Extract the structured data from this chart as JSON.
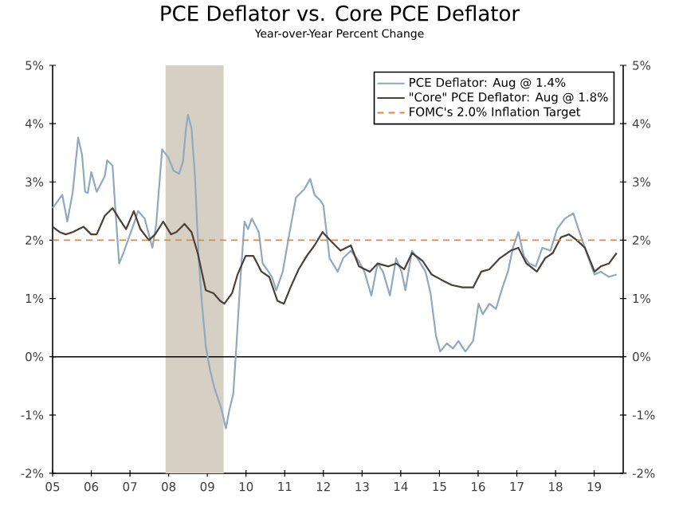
{
  "chart_data": {
    "type": "line",
    "title": "PCE Deflator vs. Core PCE Deflator",
    "subtitle": "Year-over-Year Percent Change",
    "xlim": [
      2005,
      2019.75
    ],
    "xticks": [
      {
        "value": 2005,
        "label": "05"
      },
      {
        "value": 2006,
        "label": "06"
      },
      {
        "value": 2007,
        "label": "07"
      },
      {
        "value": 2008,
        "label": "08"
      },
      {
        "value": 2009,
        "label": "09"
      },
      {
        "value": 2010,
        "label": "10"
      },
      {
        "value": 2011,
        "label": "11"
      },
      {
        "value": 2012,
        "label": "12"
      },
      {
        "value": 2013,
        "label": "13"
      },
      {
        "value": 2014,
        "label": "14"
      },
      {
        "value": 2015,
        "label": "15"
      },
      {
        "value": 2016,
        "label": "16"
      },
      {
        "value": 2017,
        "label": "17"
      },
      {
        "value": 2018,
        "label": "18"
      },
      {
        "value": 2019,
        "label": "19"
      }
    ],
    "ylim": [
      -2,
      5
    ],
    "yticks": [
      {
        "value": -2,
        "label": "-2%"
      },
      {
        "value": -1,
        "label": "-1%"
      },
      {
        "value": 0,
        "label": "0%"
      },
      {
        "value": 1,
        "label": "1%"
      },
      {
        "value": 2,
        "label": "2%"
      },
      {
        "value": 3,
        "label": "3%"
      },
      {
        "value": 4,
        "label": "4%"
      },
      {
        "value": 5,
        "label": "5%"
      }
    ],
    "y2lim": [
      -2,
      5
    ],
    "y2ticks": [
      {
        "value": -2,
        "label": "-2%"
      },
      {
        "value": -1,
        "label": "-1%"
      },
      {
        "value": 0,
        "label": "0%"
      },
      {
        "value": 1,
        "label": "1%"
      },
      {
        "value": 2,
        "label": "2%"
      },
      {
        "value": 3,
        "label": "3%"
      },
      {
        "value": 4,
        "label": "4%"
      },
      {
        "value": 5,
        "label": "5%"
      }
    ],
    "grid": false,
    "legend": "top right",
    "marker": "none",
    "line_style": "solid",
    "series": [
      {
        "name": "PCE Deflator: Aug @ 1.4%",
        "color": "#8fa9bf",
        "x": [
          2005.0,
          2005.25,
          2005.38,
          2005.52,
          2005.66,
          2005.76,
          2005.84,
          2005.91,
          2006.0,
          2006.14,
          2006.35,
          2006.41,
          2006.55,
          2006.62,
          2006.72,
          2006.83,
          2007.1,
          2007.21,
          2007.38,
          2007.58,
          2007.68,
          2007.83,
          2007.99,
          2008.13,
          2008.27,
          2008.37,
          2008.45,
          2008.5,
          2008.59,
          2008.68,
          2008.78,
          2008.86,
          2008.96,
          2009.07,
          2009.19,
          2009.37,
          2009.48,
          2009.57,
          2009.67,
          2009.75,
          2009.85,
          2009.96,
          2010.05,
          2010.15,
          2010.33,
          2010.43,
          2010.54,
          2010.67,
          2010.78,
          2010.95,
          2011.09,
          2011.29,
          2011.5,
          2011.66,
          2011.77,
          2011.91,
          2012.0,
          2012.16,
          2012.37,
          2012.51,
          2012.71,
          2012.92,
          2013.06,
          2013.24,
          2013.4,
          2013.54,
          2013.72,
          2013.88,
          2014.02,
          2014.12,
          2014.29,
          2014.43,
          2014.64,
          2014.77,
          2014.91,
          2015.02,
          2015.19,
          2015.35,
          2015.49,
          2015.67,
          2015.87,
          2016.01,
          2016.12,
          2016.29,
          2016.46,
          2016.63,
          2016.77,
          2016.9,
          2017.04,
          2017.18,
          2017.32,
          2017.49,
          2017.66,
          2017.87,
          2018.04,
          2018.24,
          2018.46,
          2018.62,
          2018.83,
          2019.01,
          2019.17,
          2019.38,
          2019.58
        ],
        "values": [
          2.55,
          2.78,
          2.32,
          2.82,
          3.76,
          3.47,
          2.83,
          2.81,
          3.17,
          2.83,
          3.1,
          3.37,
          3.28,
          2.55,
          1.6,
          1.78,
          2.28,
          2.5,
          2.37,
          1.87,
          2.28,
          3.56,
          3.42,
          3.19,
          3.14,
          3.35,
          3.92,
          4.15,
          3.92,
          3.1,
          1.64,
          0.91,
          0.18,
          -0.23,
          -0.55,
          -0.91,
          -1.23,
          -0.91,
          -0.64,
          0.18,
          1.28,
          2.32,
          2.19,
          2.37,
          2.14,
          1.6,
          1.5,
          1.37,
          1.14,
          1.46,
          2.0,
          2.73,
          2.87,
          3.05,
          2.78,
          2.69,
          2.6,
          1.69,
          1.46,
          1.69,
          1.82,
          1.64,
          1.46,
          1.05,
          1.6,
          1.46,
          1.05,
          1.69,
          1.46,
          1.14,
          1.82,
          1.69,
          1.46,
          1.09,
          0.36,
          0.09,
          0.23,
          0.14,
          0.27,
          0.09,
          0.27,
          0.91,
          0.73,
          0.91,
          0.82,
          1.19,
          1.46,
          1.87,
          2.14,
          1.73,
          1.6,
          1.55,
          1.87,
          1.82,
          2.19,
          2.37,
          2.46,
          2.14,
          1.73,
          1.41,
          1.46,
          1.37,
          1.41
        ]
      },
      {
        "name": "\"Core\" PCE Deflator: Aug @ 1.8%",
        "color": "#4a4038",
        "x": [
          2005.0,
          2005.18,
          2005.34,
          2005.52,
          2005.8,
          2006.0,
          2006.14,
          2006.35,
          2006.55,
          2006.72,
          2006.9,
          2007.1,
          2007.27,
          2007.49,
          2007.65,
          2007.86,
          2008.06,
          2008.2,
          2008.41,
          2008.59,
          2008.75,
          2008.96,
          2009.16,
          2009.33,
          2009.44,
          2009.64,
          2009.78,
          2009.99,
          2010.19,
          2010.4,
          2010.6,
          2010.81,
          2010.98,
          2011.15,
          2011.36,
          2011.57,
          2011.77,
          2011.98,
          2012.03,
          2012.23,
          2012.44,
          2012.71,
          2012.92,
          2013.2,
          2013.4,
          2013.68,
          2013.88,
          2014.09,
          2014.29,
          2014.57,
          2014.8,
          2015.05,
          2015.32,
          2015.6,
          2015.87,
          2016.08,
          2016.29,
          2016.56,
          2016.84,
          2017.04,
          2017.25,
          2017.52,
          2017.73,
          2017.93,
          2018.14,
          2018.35,
          2018.55,
          2018.76,
          2019.01,
          2019.17,
          2019.38,
          2019.58
        ],
        "values": [
          2.23,
          2.14,
          2.1,
          2.14,
          2.23,
          2.1,
          2.1,
          2.42,
          2.55,
          2.37,
          2.19,
          2.5,
          2.19,
          2.0,
          2.1,
          2.32,
          2.1,
          2.14,
          2.28,
          2.14,
          1.78,
          1.14,
          1.09,
          0.96,
          0.91,
          1.09,
          1.41,
          1.73,
          1.73,
          1.46,
          1.37,
          0.96,
          0.91,
          1.19,
          1.5,
          1.73,
          1.91,
          2.14,
          2.1,
          1.96,
          1.82,
          1.91,
          1.55,
          1.46,
          1.6,
          1.55,
          1.6,
          1.5,
          1.78,
          1.64,
          1.41,
          1.32,
          1.23,
          1.19,
          1.19,
          1.46,
          1.5,
          1.69,
          1.82,
          1.87,
          1.6,
          1.46,
          1.69,
          1.78,
          2.05,
          2.1,
          2.0,
          1.87,
          1.46,
          1.55,
          1.6,
          1.78
        ]
      }
    ],
    "ref_lines": [
      {
        "axis": "y",
        "value": 0,
        "color": "#000000",
        "line_style": "solid"
      },
      {
        "axis": "y",
        "value": 2,
        "label": "FOMC's 2.0% Inflation Target",
        "color": "#d98b3a",
        "line_style": "dashed"
      }
    ],
    "bands": [
      {
        "axis": "x",
        "from": 2007.92,
        "to": 2009.42,
        "color": "#d6d0c4"
      }
    ]
  }
}
